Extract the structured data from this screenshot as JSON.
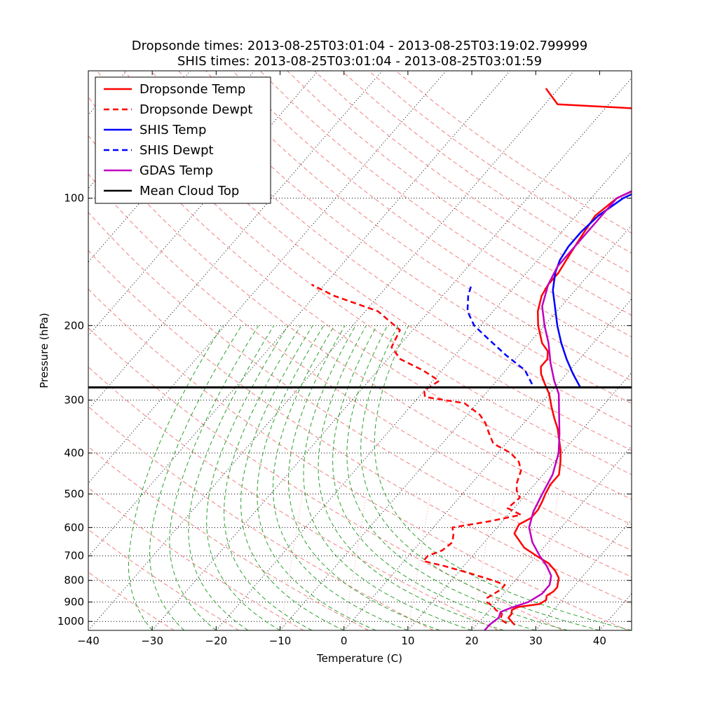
{
  "chart_data": {
    "type": "line",
    "title_lines": [
      "Dropsonde times: 2013-08-25T03:01:04 - 2013-08-25T03:19:02.799999",
      "SHIS times: 2013-08-25T03:01:04 - 2013-08-25T03:01:59"
    ],
    "xlabel": "Temperature (C)",
    "ylabel": "Pressure (hPa)",
    "xlim": [
      -40,
      45
    ],
    "ylim_hpa": [
      1050,
      50
    ],
    "y_scale": "log",
    "skew_note": "temperature axis is skewed (isotherms tilt up-right)",
    "x_ticks": [
      -40,
      -30,
      -20,
      -10,
      0,
      10,
      20,
      30,
      40
    ],
    "x_tick_labels": [
      "−40",
      "−30",
      "−20",
      "−10",
      "0",
      "10",
      "20",
      "30",
      "40"
    ],
    "y_ticks": [
      100,
      200,
      300,
      400,
      500,
      600,
      700,
      800,
      900,
      1000
    ],
    "y_tick_labels": [
      "100",
      "200",
      "300",
      "400",
      "500",
      "600",
      "700",
      "800",
      "900",
      "1000"
    ],
    "grid": true,
    "mean_cloud_top_hpa": 280,
    "legend": {
      "placement": "top-left",
      "entries": [
        {
          "label": "Dropsonde Temp",
          "color": "#ff0000",
          "style": "solid"
        },
        {
          "label": "Dropsonde Dewpt",
          "color": "#ff0000",
          "style": "dashed"
        },
        {
          "label": "SHIS Temp",
          "color": "#0000ff",
          "style": "solid"
        },
        {
          "label": "SHIS Dewpt",
          "color": "#0000ff",
          "style": "dashed"
        },
        {
          "label": "GDAS Temp",
          "color": "#bf00bf",
          "style": "solid"
        },
        {
          "label": "Mean Cloud Top",
          "color": "#000000",
          "style": "solid"
        }
      ]
    },
    "series": [
      {
        "name": "Dropsonde Temp",
        "color": "#ff0000",
        "style": "solid",
        "points": [
          [
            26,
            1020
          ],
          [
            25,
            1000
          ],
          [
            24,
            980
          ],
          [
            24,
            960
          ],
          [
            23.5,
            940
          ],
          [
            24,
            925
          ],
          [
            27,
            910
          ],
          [
            27.5,
            890
          ],
          [
            27,
            870
          ],
          [
            27.5,
            850
          ],
          [
            27.5,
            830
          ],
          [
            27,
            810
          ],
          [
            26.5,
            790
          ],
          [
            25,
            760
          ],
          [
            23,
            730
          ],
          [
            20,
            700
          ],
          [
            17,
            670
          ],
          [
            13.5,
            620
          ],
          [
            13,
            590
          ],
          [
            14,
            570
          ],
          [
            14,
            545
          ],
          [
            13.5,
            520
          ],
          [
            13,
            500
          ],
          [
            12.5,
            475
          ],
          [
            12.5,
            450
          ],
          [
            11,
            420
          ],
          [
            9.5,
            395
          ],
          [
            8,
            375
          ],
          [
            6,
            350
          ],
          [
            4,
            330
          ],
          [
            2,
            310
          ],
          [
            0,
            290
          ],
          [
            -2,
            275
          ],
          [
            -4,
            260
          ],
          [
            -5,
            250
          ],
          [
            -5,
            240
          ],
          [
            -6,
            230
          ],
          [
            -8,
            220
          ],
          [
            -11,
            200
          ],
          [
            -13,
            185
          ],
          [
            -14.5,
            170
          ],
          [
            -15,
            160
          ],
          [
            -15,
            150
          ],
          [
            -15.5,
            140
          ],
          [
            -16,
            130
          ],
          [
            -16.5,
            120
          ],
          [
            -17,
            110
          ],
          [
            -16,
            100
          ],
          [
            -14,
            95
          ],
          [
            -12,
            90
          ],
          [
            -10,
            85
          ],
          [
            -8,
            80
          ],
          [
            -4,
            75
          ],
          [
            4,
            72
          ],
          [
            6,
            72
          ],
          [
            8,
            65
          ],
          [
            -38,
            60
          ],
          [
            -42,
            55
          ]
        ]
      },
      {
        "name": "Dropsonde Dewpt",
        "color": "#ff0000",
        "style": "dashed",
        "points": [
          [
            24.5,
            1010
          ],
          [
            23,
            990
          ],
          [
            22.5,
            960
          ],
          [
            21,
            940
          ],
          [
            20,
            920
          ],
          [
            18.5,
            900
          ],
          [
            18,
            880
          ],
          [
            18.5,
            860
          ],
          [
            19,
            840
          ],
          [
            19,
            820
          ],
          [
            16.5,
            800
          ],
          [
            12,
            770
          ],
          [
            7,
            740
          ],
          [
            3,
            720
          ],
          [
            3,
            700
          ],
          [
            4.5,
            680
          ],
          [
            5,
            650
          ],
          [
            4,
            620
          ],
          [
            3,
            600
          ],
          [
            8,
            580
          ],
          [
            12,
            560
          ],
          [
            9,
            540
          ],
          [
            9.5,
            510
          ],
          [
            8,
            490
          ],
          [
            7,
            470
          ],
          [
            6,
            440
          ],
          [
            4.5,
            420
          ],
          [
            2,
            400
          ],
          [
            -2,
            380
          ],
          [
            -4,
            360
          ],
          [
            -6,
            340
          ],
          [
            -8,
            325
          ],
          [
            -12,
            305
          ],
          [
            -19,
            295
          ],
          [
            -20,
            285
          ],
          [
            -19,
            270
          ],
          [
            -23,
            255
          ],
          [
            -28,
            240
          ],
          [
            -31,
            225
          ],
          [
            -32,
            205
          ],
          [
            -38,
            185
          ],
          [
            -47,
            170
          ],
          [
            -52,
            160
          ]
        ]
      },
      {
        "name": "SHIS Temp",
        "color": "#0000ff",
        "style": "solid",
        "points": [
          [
            4,
            280
          ],
          [
            1,
            260
          ],
          [
            -2,
            240
          ],
          [
            -5,
            220
          ],
          [
            -8,
            200
          ],
          [
            -11,
            180
          ],
          [
            -13.5,
            165
          ],
          [
            -15.5,
            150
          ],
          [
            -16.5,
            140
          ],
          [
            -17,
            130
          ],
          [
            -17,
            120
          ],
          [
            -16.5,
            110
          ],
          [
            -15,
            100
          ],
          [
            -12,
            92
          ],
          [
            -8,
            85
          ],
          [
            -2,
            75
          ],
          [
            3,
            68
          ],
          [
            8,
            62
          ],
          [
            15,
            55
          ]
        ]
      },
      {
        "name": "SHIS Dewpt",
        "color": "#0000ff",
        "style": "dashed",
        "points": [
          [
            -4,
            275
          ],
          [
            -7,
            255
          ],
          [
            -12,
            235
          ],
          [
            -17,
            215
          ],
          [
            -21,
            200
          ],
          [
            -24,
            185
          ],
          [
            -26,
            170
          ],
          [
            -27,
            160
          ]
        ]
      },
      {
        "name": "GDAS Temp",
        "color": "#bf00bf",
        "style": "solid",
        "points": [
          [
            22,
            1050
          ],
          [
            22,
            1020
          ],
          [
            22.5,
            980
          ],
          [
            22,
            950
          ],
          [
            23,
            930
          ],
          [
            25,
            900
          ],
          [
            26,
            860
          ],
          [
            26,
            820
          ],
          [
            25,
            780
          ],
          [
            23,
            740
          ],
          [
            20.5,
            700
          ],
          [
            17.5,
            650
          ],
          [
            15,
            600
          ],
          [
            13.5,
            550
          ],
          [
            12.5,
            500
          ],
          [
            11.5,
            450
          ],
          [
            9.5,
            400
          ],
          [
            7,
            360
          ],
          [
            4,
            320
          ],
          [
            1.5,
            290
          ],
          [
            -1,
            270
          ],
          [
            -4,
            245
          ],
          [
            -7,
            220
          ],
          [
            -10,
            200
          ],
          [
            -13,
            180
          ],
          [
            -15,
            160
          ],
          [
            -16,
            145
          ],
          [
            -16,
            130
          ],
          [
            -16,
            115
          ],
          [
            -16,
            100
          ],
          [
            -13,
            92
          ],
          [
            -8,
            85
          ],
          [
            -2,
            76
          ],
          [
            4,
            68
          ],
          [
            9,
            61
          ],
          [
            15,
            55
          ]
        ]
      }
    ]
  }
}
